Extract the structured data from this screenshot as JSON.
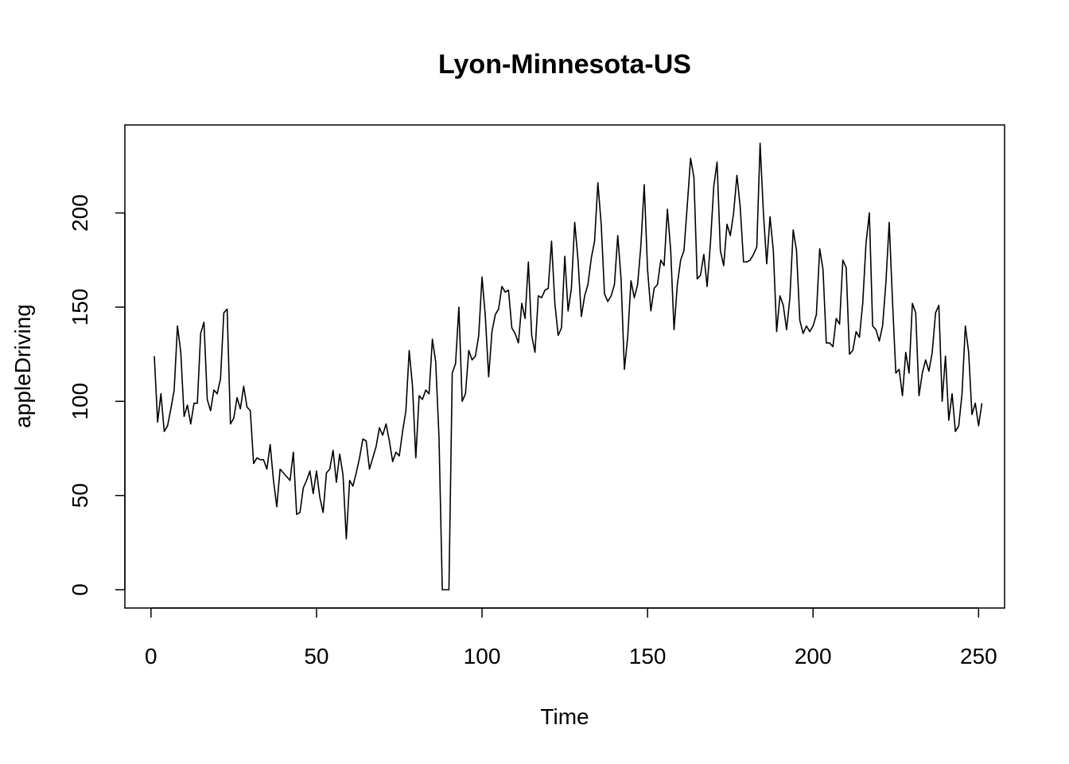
{
  "chart_data": {
    "type": "line",
    "title": "Lyon-Minnesota-US",
    "xlabel": "Time",
    "ylabel": "appleDriving",
    "xlim": [
      1,
      248
    ],
    "ylim": [
      0,
      237
    ],
    "x_ticks": [
      0,
      50,
      100,
      150,
      200,
      250
    ],
    "y_ticks": [
      0,
      50,
      100,
      150,
      200
    ],
    "grid": false,
    "line_color": "#000000",
    "series": [
      {
        "x_start": 1,
        "x_step": 1,
        "values": [
          124,
          89,
          104,
          84,
          87,
          96,
          106,
          140,
          126,
          92,
          98,
          88,
          99,
          99,
          136,
          142,
          101,
          95,
          106,
          104,
          112,
          147,
          149,
          88,
          91,
          102,
          96,
          108,
          97,
          95,
          67,
          70,
          69,
          69,
          64,
          77,
          58,
          44,
          64,
          62,
          60,
          58,
          73,
          40,
          41,
          54,
          58,
          63,
          51,
          63,
          49,
          41,
          62,
          64,
          74,
          57,
          72,
          61,
          27,
          58,
          55,
          62,
          70,
          80,
          79,
          64,
          70,
          76,
          86,
          82,
          88,
          79,
          68,
          73,
          71,
          84,
          95,
          127,
          108,
          70,
          103,
          101,
          106,
          104,
          133,
          121,
          81,
          0,
          0,
          0,
          115,
          120,
          150,
          100,
          104,
          127,
          122,
          124,
          135,
          166,
          145,
          113,
          137,
          146,
          149,
          161,
          158,
          159,
          139,
          136,
          131,
          152,
          144,
          174,
          135,
          126,
          156,
          155,
          159,
          160,
          185,
          152,
          135,
          139,
          177,
          148,
          160,
          195,
          175,
          145,
          156,
          162,
          176,
          185,
          216,
          194,
          157,
          153,
          156,
          162,
          188,
          165,
          117,
          134,
          164,
          155,
          162,
          183,
          215,
          170,
          148,
          160,
          162,
          175,
          172,
          202,
          180,
          138,
          162,
          175,
          180,
          204,
          229,
          219,
          165,
          167,
          178,
          161,
          184,
          214,
          227,
          180,
          172,
          194,
          188,
          200,
          220,
          203,
          174,
          174,
          175,
          178,
          182,
          237,
          200,
          173,
          198,
          180,
          137,
          156,
          151,
          138,
          155,
          191,
          180,
          143,
          136,
          140,
          137,
          140,
          146,
          181,
          170,
          131,
          131,
          129,
          144,
          141,
          175,
          171,
          125,
          127,
          137,
          134,
          152,
          184,
          200,
          140,
          138,
          132,
          140,
          163,
          195,
          153,
          115,
          117,
          103,
          126,
          115,
          152,
          147,
          103,
          115,
          122,
          116,
          126,
          147,
          151,
          100,
          124,
          90,
          104,
          84,
          87,
          104,
          140,
          126,
          93,
          99,
          87,
          99
        ]
      }
    ]
  }
}
